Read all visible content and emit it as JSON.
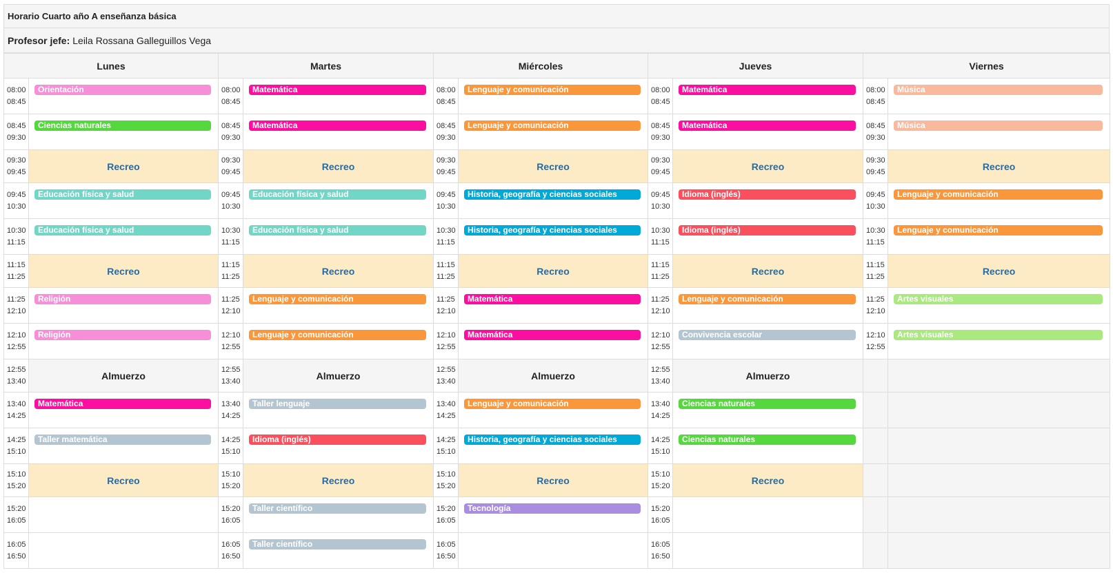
{
  "title": "Horario Cuarto año A enseñanza básica",
  "teacher_label": "Profesor jefe:",
  "teacher_name": "Leila Rossana Galleguillos Vega",
  "days": [
    "Lunes",
    "Martes",
    "Miércoles",
    "Jueves",
    "Viernes"
  ],
  "colors": {
    "Orientación": "#f78ed8",
    "Matemática": "#fb0fa0",
    "Lenguaje y comunicación": "#fb973b",
    "Música": "#f8b99c",
    "Ciencias naturales": "#55d83d",
    "Educación física y salud": "#72d6c6",
    "Historia, geografía y ciencias sociales": "#00a9d8",
    "Idioma (inglés)": "#fa4f5d",
    "Religión": "#f78ed8",
    "Artes visuales": "#a9e97f",
    "Convivencia escolar": "#b4c5d2",
    "Taller lenguaje": "#b4c5d2",
    "Taller matemática": "#b4c5d2",
    "Taller científico": "#b4c5d2",
    "Tecnología": "#a98ddf"
  },
  "rows": [
    {
      "type": "class",
      "start": "08:00",
      "end": "08:45",
      "cells": [
        "Orientación",
        "Matemática",
        "Lenguaje y comunicación",
        "Matemática",
        "Música"
      ]
    },
    {
      "type": "class",
      "start": "08:45",
      "end": "09:30",
      "cells": [
        "Ciencias naturales",
        "Matemática",
        "Lenguaje y comunicación",
        "Matemática",
        "Música"
      ]
    },
    {
      "type": "break",
      "start": "09:30",
      "end": "09:45",
      "label": "Recreo",
      "days": 5
    },
    {
      "type": "class",
      "start": "09:45",
      "end": "10:30",
      "cells": [
        "Educación física y salud",
        "Educación física y salud",
        "Historia, geografía y ciencias sociales",
        "Idioma (inglés)",
        "Lenguaje y comunicación"
      ]
    },
    {
      "type": "class",
      "start": "10:30",
      "end": "11:15",
      "cells": [
        "Educación física y salud",
        "Educación física y salud",
        "Historia, geografía y ciencias sociales",
        "Idioma (inglés)",
        "Lenguaje y comunicación"
      ]
    },
    {
      "type": "break",
      "start": "11:15",
      "end": "11:25",
      "label": "Recreo",
      "days": 5
    },
    {
      "type": "class",
      "start": "11:25",
      "end": "12:10",
      "cells": [
        "Religión",
        "Lenguaje y comunicación",
        "Matemática",
        "Lenguaje y comunicación",
        "Artes visuales"
      ]
    },
    {
      "type": "class",
      "start": "12:10",
      "end": "12:55",
      "cells": [
        "Religión",
        "Lenguaje y comunicación",
        "Matemática",
        "Convivencia escolar",
        "Artes visuales"
      ]
    },
    {
      "type": "lunch",
      "start": "12:55",
      "end": "13:40",
      "label": "Almuerzo",
      "days": 4
    },
    {
      "type": "class",
      "start": "13:40",
      "end": "14:25",
      "cells": [
        "Matemática",
        "Taller lenguaje",
        "Lenguaje y comunicación",
        "Ciencias naturales",
        null
      ]
    },
    {
      "type": "class",
      "start": "14:25",
      "end": "15:10",
      "cells": [
        "Taller matemática",
        "Idioma (inglés)",
        "Historia, geografía y ciencias sociales",
        "Ciencias naturales",
        null
      ]
    },
    {
      "type": "break",
      "start": "15:10",
      "end": "15:20",
      "label": "Recreo",
      "days": 4
    },
    {
      "type": "class",
      "start": "15:20",
      "end": "16:05",
      "cells": [
        "",
        "Taller científico",
        "Tecnología",
        "",
        null
      ]
    },
    {
      "type": "class",
      "start": "16:05",
      "end": "16:50",
      "cells": [
        "",
        "Taller científico",
        "",
        "",
        null
      ]
    }
  ]
}
